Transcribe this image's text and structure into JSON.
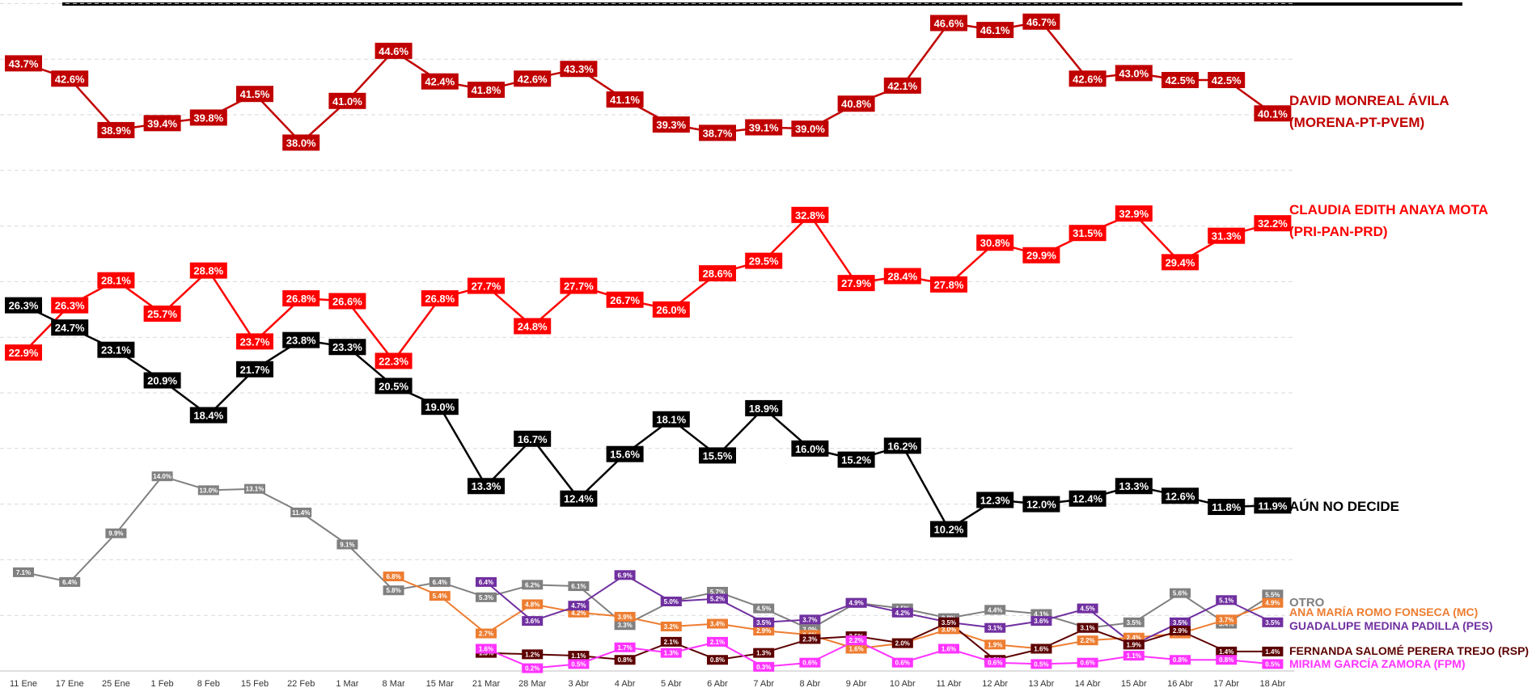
{
  "chart_data": {
    "type": "line",
    "title": "",
    "xlabel": "",
    "ylabel": "",
    "ylim": [
      0,
      48
    ],
    "grid": "horizontal-dashed",
    "legend": "right-of-lines",
    "categories": [
      "11 Ene",
      "17 Ene",
      "25 Ene",
      "1 Feb",
      "8 Feb",
      "15 Feb",
      "22 Feb",
      "1 Mar",
      "8 Mar",
      "15 Mar",
      "21 Mar",
      "28 Mar",
      "3 Abr",
      "4 Abr",
      "5 Abr",
      "6 Abr",
      "7 Abr",
      "8 Abr",
      "9 Abr",
      "10 Abr",
      "11 Abr",
      "12 Abr",
      "13 Abr",
      "14 Abr",
      "15 Abr",
      "16 Abr",
      "17 Abr",
      "18 Abr"
    ],
    "series": [
      {
        "key": "monreal",
        "name_lines": [
          "DAVID MONREAL ÁVILA",
          "(MORENA-PT-PVEM)"
        ],
        "color": "#c00000",
        "label_size": "big",
        "values": [
          43.7,
          42.6,
          38.9,
          39.4,
          39.8,
          41.5,
          38.0,
          41.0,
          44.6,
          42.4,
          41.8,
          42.6,
          43.3,
          41.1,
          39.3,
          38.7,
          39.1,
          39.0,
          40.8,
          42.1,
          46.6,
          46.1,
          46.7,
          42.6,
          43.0,
          42.5,
          42.5,
          40.1
        ]
      },
      {
        "key": "anaya",
        "name_lines": [
          "CLAUDIA EDITH ANAYA MOTA",
          "(PRI-PAN-PRD)"
        ],
        "color": "#ff0000",
        "label_size": "big",
        "values": [
          22.9,
          26.3,
          28.1,
          25.7,
          28.8,
          23.7,
          26.8,
          26.6,
          22.3,
          26.8,
          27.7,
          24.8,
          27.7,
          26.7,
          26.0,
          28.6,
          29.5,
          32.8,
          27.9,
          28.4,
          27.8,
          30.8,
          29.9,
          31.5,
          32.9,
          29.4,
          31.3,
          32.2
        ]
      },
      {
        "key": "no_decide",
        "name_lines": [
          "AÚN NO DECIDE"
        ],
        "color": "#000000",
        "label_size": "big",
        "values": [
          26.3,
          24.7,
          23.1,
          20.9,
          18.4,
          21.7,
          23.8,
          23.3,
          20.5,
          19.0,
          13.3,
          16.7,
          12.4,
          15.6,
          18.1,
          15.5,
          18.9,
          16.0,
          15.2,
          16.2,
          10.2,
          12.3,
          12.0,
          12.4,
          13.3,
          12.6,
          11.8,
          11.9
        ]
      },
      {
        "key": "otro",
        "name_lines": [
          "OTRO"
        ],
        "color": "#808080",
        "label_size": "small",
        "values": [
          7.1,
          6.4,
          9.9,
          14.0,
          13.0,
          13.1,
          11.4,
          9.1,
          5.8,
          6.4,
          5.3,
          6.2,
          6.1,
          3.3,
          5.0,
          5.7,
          4.5,
          3.0,
          4.9,
          4.5,
          3.8,
          4.4,
          4.1,
          3.1,
          3.5,
          5.6,
          3.4,
          5.5
        ]
      },
      {
        "key": "romo",
        "name_lines": [
          "ANA MARÍA ROMO FONSECA (MC)"
        ],
        "color": "#ed7d31",
        "label_size": "small",
        "values": [
          null,
          null,
          null,
          null,
          null,
          null,
          null,
          null,
          6.8,
          5.4,
          2.7,
          4.8,
          4.2,
          3.9,
          3.2,
          3.4,
          2.9,
          2.6,
          1.6,
          2.0,
          3.0,
          1.9,
          1.6,
          2.2,
          2.4,
          2.7,
          3.7,
          4.9
        ]
      },
      {
        "key": "medina",
        "name_lines": [
          "GUADALUPE MEDINA PADILLA  (PES)"
        ],
        "color": "#7030a0",
        "label_size": "small",
        "values": [
          null,
          null,
          null,
          null,
          null,
          null,
          null,
          null,
          null,
          null,
          6.4,
          3.6,
          4.7,
          6.9,
          5.0,
          5.2,
          3.5,
          3.7,
          4.9,
          4.2,
          3.5,
          3.1,
          3.6,
          4.5,
          1.9,
          3.5,
          5.1,
          3.5
        ]
      },
      {
        "key": "perera",
        "name_lines": [
          "FERNANDA SALOMÉ PERERA TREJO (RSP)"
        ],
        "color": "#5c0000",
        "label_size": "small",
        "values": [
          null,
          null,
          null,
          null,
          null,
          null,
          null,
          null,
          null,
          null,
          1.3,
          1.2,
          1.1,
          0.8,
          2.1,
          0.8,
          1.3,
          2.3,
          2.5,
          2.0,
          3.5,
          0.8,
          1.6,
          3.1,
          1.9,
          2.9,
          1.4,
          1.4
        ]
      },
      {
        "key": "garcia",
        "name_lines": [
          "MIRIAM GARCÍA ZAMORA (FPM)"
        ],
        "color": "#ff33ff",
        "label_size": "small",
        "values": [
          null,
          null,
          null,
          null,
          null,
          null,
          null,
          null,
          null,
          null,
          1.6,
          0.2,
          0.5,
          1.7,
          1.3,
          2.1,
          0.3,
          0.6,
          2.2,
          0.6,
          1.6,
          0.6,
          0.5,
          0.6,
          1.1,
          0.8,
          0.8,
          0.5
        ]
      }
    ]
  }
}
